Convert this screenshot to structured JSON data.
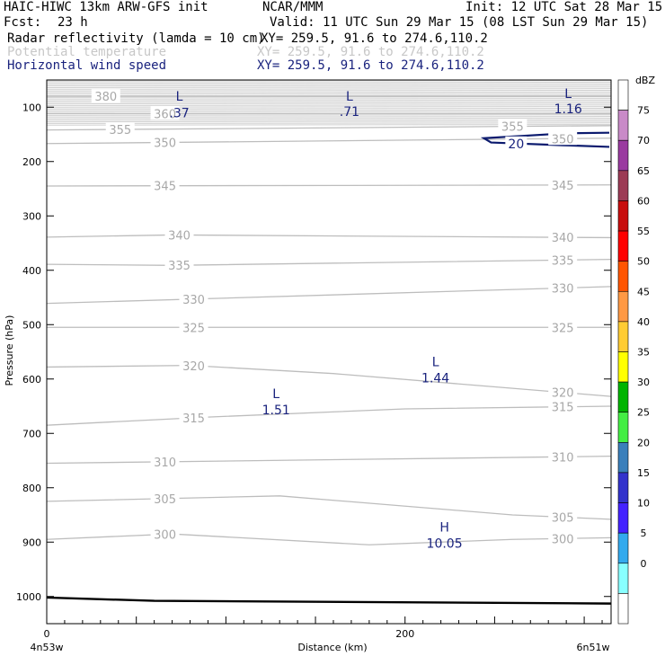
{
  "header": {
    "model": "HAIC-HIWC 13km ARW-GFS init",
    "org": "NCAR/MMM",
    "init": "Init: 12 UTC Sat 28 Mar 15",
    "fcst_label": "Fcst:",
    "fcst_value": "23 h",
    "valid": "Valid: 11 UTC Sun 29 Mar 15 (08 LST Sun 29 Mar 15)",
    "fields": [
      {
        "name": "Radar reflectivity (lamda = 10 cm)",
        "coords": "XY= 259.5, 91.6 to 274.6,110.2",
        "color": "#000000"
      },
      {
        "name": "Potential temperature",
        "coords": "XY= 259.5, 91.6 to 274.6,110.2",
        "color": "#c8c8c8"
      },
      {
        "name": "Horizontal wind speed",
        "coords": "XY= 259.5, 91.6 to 274.6,110.2",
        "color": "#1a237e"
      }
    ]
  },
  "chart_data": {
    "type": "cross-section",
    "xlabel": "Distance (km)",
    "ylabel": "Pressure (hPa)",
    "x_range": [
      0,
      315
    ],
    "y_range": [
      1050,
      50
    ],
    "y_ticks": [
      100,
      200,
      300,
      400,
      500,
      600,
      700,
      800,
      900,
      1000
    ],
    "x_tick_labels": [
      {
        "x": 0,
        "label": "0"
      },
      {
        "x": 200,
        "label": "200"
      }
    ],
    "x_end_labels": {
      "left": "4n53w",
      "right": "6n51w"
    },
    "theta_contours": [
      {
        "label": "380",
        "points": [
          [
            0,
            80
          ],
          [
            315,
            80
          ]
        ],
        "label_at": [
          [
            33,
            80
          ]
        ]
      },
      {
        "label": "360",
        "points": [
          [
            0,
            112
          ],
          [
            315,
            112
          ]
        ],
        "label_at": [
          [
            66,
            120
          ]
        ]
      },
      {
        "label": "355",
        "points": [
          [
            0,
            142
          ],
          [
            315,
            134
          ]
        ],
        "label_at": [
          [
            41,
            142
          ],
          [
            260,
            137
          ]
        ]
      },
      {
        "label": "350",
        "points": [
          [
            0,
            167
          ],
          [
            315,
            157
          ]
        ],
        "label_at": [
          [
            66,
            163
          ],
          [
            288,
            157
          ]
        ]
      },
      {
        "label": "345",
        "points": [
          [
            0,
            245
          ],
          [
            315,
            243
          ]
        ],
        "label_at": [
          [
            66,
            243
          ],
          [
            288,
            246
          ]
        ]
      },
      {
        "label": "340",
        "points": [
          [
            0,
            339
          ],
          [
            70,
            335
          ],
          [
            315,
            340
          ]
        ],
        "label_at": [
          [
            74,
            337
          ],
          [
            288,
            342
          ]
        ]
      },
      {
        "label": "335",
        "points": [
          [
            0,
            389
          ],
          [
            70,
            391
          ],
          [
            315,
            380
          ]
        ],
        "label_at": [
          [
            74,
            390
          ],
          [
            288,
            383
          ]
        ]
      },
      {
        "label": "330",
        "points": [
          [
            0,
            461
          ],
          [
            315,
            430
          ]
        ],
        "label_at": [
          [
            82,
            445
          ],
          [
            288,
            432
          ]
        ]
      },
      {
        "label": "325",
        "points": [
          [
            0,
            505
          ],
          [
            315,
            505
          ]
        ],
        "label_at": [
          [
            82,
            502
          ],
          [
            288,
            508
          ]
        ]
      },
      {
        "label": "320",
        "points": [
          [
            0,
            578
          ],
          [
            80,
            575
          ],
          [
            160,
            590
          ],
          [
            315,
            632
          ]
        ],
        "label_at": [
          [
            82,
            579
          ],
          [
            288,
            625
          ]
        ]
      },
      {
        "label": "315",
        "points": [
          [
            0,
            685
          ],
          [
            90,
            670
          ],
          [
            200,
            655
          ],
          [
            315,
            650
          ]
        ],
        "label_at": [
          [
            82,
            675
          ],
          [
            288,
            656
          ]
        ]
      },
      {
        "label": "310",
        "points": [
          [
            0,
            755
          ],
          [
            315,
            742
          ]
        ],
        "label_at": [
          [
            66,
            745
          ],
          [
            288,
            745
          ]
        ]
      },
      {
        "label": "305",
        "points": [
          [
            0,
            825
          ],
          [
            130,
            815
          ],
          [
            260,
            850
          ],
          [
            315,
            858
          ]
        ],
        "label_at": [
          [
            66,
            818
          ],
          [
            288,
            855
          ]
        ]
      },
      {
        "label": "300",
        "points": [
          [
            0,
            895
          ],
          [
            70,
            885
          ],
          [
            180,
            905
          ],
          [
            260,
            895
          ],
          [
            315,
            892
          ]
        ],
        "label_at": [
          [
            66,
            891
          ],
          [
            288,
            892
          ]
        ]
      }
    ],
    "wind_contour": {
      "label": "20",
      "points": [
        [
          314,
          147
        ],
        [
          290,
          148
        ],
        [
          244,
          157
        ],
        [
          248,
          165
        ],
        [
          288,
          170
        ],
        [
          314,
          173
        ]
      ],
      "label_at": [
        [
          262,
          167
        ]
      ]
    },
    "extrema": [
      {
        "type": "L",
        "value": ".37",
        "x": 74,
        "p": 80,
        "value_p": 110
      },
      {
        "type": "L",
        "value": ".71",
        "x": 169,
        "p": 80,
        "value_p": 108
      },
      {
        "type": "L",
        "value": "1.16",
        "x": 291,
        "p": 75,
        "value_p": 103
      },
      {
        "type": "L",
        "value": "1.44",
        "x": 217,
        "p": 568,
        "value_p": 598
      },
      {
        "type": "L",
        "value": "1.51",
        "x": 128,
        "p": 627,
        "value_p": 657
      },
      {
        "type": "H",
        "value": "10.05",
        "x": 222,
        "p": 872,
        "value_p": 902
      }
    ],
    "surface_line": [
      [
        0,
        1002
      ],
      [
        60,
        1008
      ],
      [
        315,
        1013
      ]
    ]
  },
  "colorbar": {
    "title": "dBZ",
    "labels": [
      "75",
      "70",
      "65",
      "60",
      "55",
      "50",
      "45",
      "40",
      "35",
      "30",
      "25",
      "20",
      "15",
      "10",
      "5",
      "0"
    ],
    "colors": [
      "#ffffff",
      "#c98ac8",
      "#9a3aa0",
      "#9c3b55",
      "#c80e0e",
      "#ff0000",
      "#ff5500",
      "#ff9944",
      "#ffcc33",
      "#ffff00",
      "#00b400",
      "#44ee44",
      "#3a7fbb",
      "#3333cc",
      "#4422ff",
      "#33aaee",
      "#88ffff",
      "#ffffff"
    ]
  }
}
